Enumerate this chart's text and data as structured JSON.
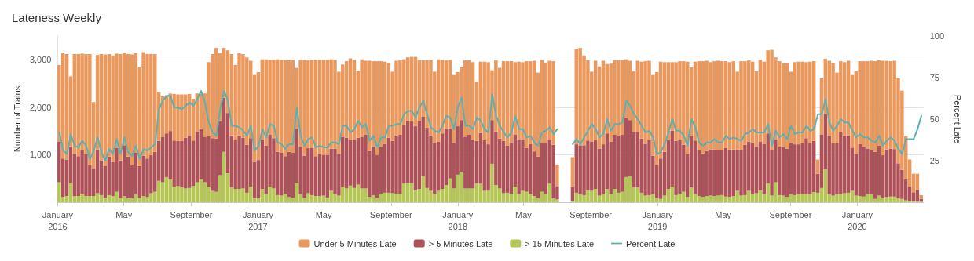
{
  "chart_data": {
    "type": "bar",
    "title": "Lateness Weekly",
    "ylabel": "Number of Trains",
    "y2label": "Percent Late",
    "stacked": true,
    "grid": "y",
    "legend": "bottom",
    "marker": "none",
    "x": [
      "2016-01-04",
      "2016-01-11",
      "2016-01-18",
      "2016-01-25",
      "2016-02-01",
      "2016-02-08",
      "2016-02-15",
      "2016-02-22",
      "2016-02-29",
      "2016-03-07",
      "2016-03-14",
      "2016-03-21",
      "2016-03-28",
      "2016-04-04",
      "2016-04-11",
      "2016-04-18",
      "2016-04-25",
      "2016-05-02",
      "2016-05-09",
      "2016-05-16",
      "2016-05-23",
      "2016-05-30",
      "2016-06-06",
      "2016-06-13",
      "2016-06-20",
      "2016-06-27",
      "2016-07-04",
      "2016-07-11",
      "2016-07-18",
      "2016-07-25",
      "2016-08-01",
      "2016-08-08",
      "2016-08-15",
      "2016-08-22",
      "2016-08-29",
      "2016-09-05",
      "2016-09-12",
      "2016-09-19",
      "2016-09-26",
      "2016-10-03",
      "2016-10-10",
      "2016-10-17",
      "2016-10-24",
      "2016-10-31",
      "2016-11-07",
      "2016-11-14",
      "2016-11-21",
      "2016-11-28",
      "2016-12-05",
      "2016-12-12",
      "2016-12-19",
      "2016-12-26",
      "2017-01-02",
      "2017-01-09",
      "2017-01-16",
      "2017-01-23",
      "2017-01-30",
      "2017-02-06",
      "2017-02-13",
      "2017-02-20",
      "2017-02-27",
      "2017-03-06",
      "2017-03-13",
      "2017-03-20",
      "2017-03-27",
      "2017-04-03",
      "2017-04-10",
      "2017-04-17",
      "2017-04-24",
      "2017-05-01",
      "2017-05-08",
      "2017-05-15",
      "2017-05-22",
      "2017-05-29",
      "2017-06-05",
      "2017-06-12",
      "2017-06-19",
      "2017-06-26",
      "2017-07-03",
      "2017-07-10",
      "2017-07-17",
      "2017-07-24",
      "2017-07-31",
      "2017-08-07",
      "2017-08-14",
      "2017-08-21",
      "2017-08-28",
      "2017-09-04",
      "2017-09-11",
      "2017-09-18",
      "2017-09-25",
      "2017-10-02",
      "2017-10-09",
      "2017-10-16",
      "2017-10-23",
      "2017-10-30",
      "2017-11-06",
      "2017-11-13",
      "2017-11-20",
      "2017-11-27",
      "2017-12-04",
      "2017-12-11",
      "2017-12-18",
      "2017-12-25",
      "2018-01-01",
      "2018-01-08",
      "2018-01-15",
      "2018-01-22",
      "2018-01-29",
      "2018-02-05",
      "2018-02-12",
      "2018-02-19",
      "2018-02-26",
      "2018-03-05",
      "2018-03-12",
      "2018-03-19",
      "2018-03-26",
      "2018-04-02",
      "2018-04-09",
      "2018-04-16",
      "2018-04-23",
      "2018-04-30",
      "2018-05-07",
      "2018-05-14",
      "2018-05-21",
      "2018-05-28",
      "2018-06-04",
      "2018-06-11",
      "2018-06-18",
      "2018-06-25",
      "2018-07-02",
      "2018-07-09",
      "2018-07-16",
      "2018-07-23",
      "2018-07-30",
      "2018-08-06",
      "2018-08-13",
      "2018-08-20",
      "2018-08-27",
      "2018-09-03",
      "2018-09-10",
      "2018-09-17",
      "2018-09-24",
      "2018-10-01",
      "2018-10-08",
      "2018-10-15",
      "2018-10-22",
      "2018-10-29",
      "2018-11-05",
      "2018-11-12",
      "2018-11-19",
      "2018-11-26",
      "2018-12-03",
      "2018-12-10",
      "2018-12-17",
      "2018-12-24",
      "2018-12-31",
      "2019-01-07",
      "2019-01-14",
      "2019-01-21",
      "2019-01-28",
      "2019-02-04",
      "2019-02-11",
      "2019-02-18",
      "2019-02-25",
      "2019-03-04",
      "2019-03-11",
      "2019-03-18",
      "2019-03-25",
      "2019-04-01",
      "2019-04-08",
      "2019-04-15",
      "2019-04-22",
      "2019-04-29",
      "2019-05-06",
      "2019-05-13",
      "2019-05-20",
      "2019-05-27",
      "2019-06-03",
      "2019-06-10",
      "2019-06-17",
      "2019-06-24",
      "2019-07-01",
      "2019-07-08",
      "2019-07-15",
      "2019-07-22",
      "2019-07-29",
      "2019-08-05",
      "2019-08-12",
      "2019-08-19",
      "2019-08-26",
      "2019-09-02",
      "2019-09-09",
      "2019-09-16",
      "2019-09-23",
      "2019-09-30",
      "2019-10-07",
      "2019-10-14",
      "2019-10-21",
      "2019-10-28",
      "2019-11-04",
      "2019-11-11",
      "2019-11-18",
      "2019-11-25",
      "2019-12-02",
      "2019-12-09",
      "2019-12-16",
      "2019-12-23",
      "2019-12-30",
      "2020-01-06",
      "2020-01-13",
      "2020-01-20",
      "2020-01-27",
      "2020-02-03",
      "2020-02-10",
      "2020-02-17",
      "2020-02-24",
      "2020-03-02",
      "2020-03-09",
      "2020-03-16",
      "2020-03-23",
      "2020-03-30",
      "2020-04-06",
      "2020-04-13",
      "2020-04-20",
      "2020-04-27"
    ],
    "series": [
      {
        "name": "> 15 Minutes Late",
        "color": "#b5c656",
        "values": [
          420,
          110,
          130,
          410,
          130,
          130,
          170,
          130,
          130,
          130,
          190,
          150,
          90,
          150,
          130,
          220,
          90,
          130,
          90,
          80,
          170,
          90,
          130,
          110,
          190,
          220,
          450,
          420,
          530,
          480,
          320,
          340,
          310,
          290,
          300,
          340,
          420,
          480,
          420,
          330,
          240,
          220,
          570,
          1060,
          610,
          310,
          280,
          280,
          290,
          200,
          330,
          90,
          80,
          280,
          170,
          330,
          290,
          150,
          140,
          180,
          110,
          90,
          410,
          170,
          90,
          190,
          150,
          130,
          130,
          140,
          100,
          240,
          170,
          140,
          330,
          290,
          350,
          300,
          370,
          290,
          290,
          110,
          150,
          90,
          180,
          200,
          200,
          190,
          180,
          180,
          390,
          400,
          400,
          250,
          280,
          550,
          300,
          240,
          180,
          240,
          280,
          360,
          500,
          290,
          580,
          640,
          290,
          290,
          290,
          400,
          390,
          240,
          240,
          810,
          360,
          290,
          190,
          200,
          180,
          330,
          170,
          240,
          220,
          180,
          130,
          90,
          220,
          170,
          390,
          80,
          60,
          null,
          null,
          null,
          30,
          200,
          170,
          150,
          250,
          240,
          280,
          140,
          170,
          280,
          170,
          280,
          200,
          220,
          530,
          550,
          310,
          310,
          200,
          140,
          150,
          170,
          90,
          70,
          140,
          280,
          330,
          150,
          180,
          220,
          110,
          310,
          170,
          130,
          110,
          130,
          140,
          130,
          140,
          150,
          120,
          110,
          130,
          240,
          140,
          150,
          240,
          170,
          190,
          250,
          170,
          390,
          140,
          420,
          150,
          140,
          110,
          170,
          150,
          170,
          180,
          170,
          160,
          210,
          200,
          300,
          700,
          170,
          140,
          170,
          180,
          190,
          200,
          240,
          140,
          130,
          120,
          170,
          170,
          70,
          140,
          100,
          110,
          120,
          120,
          80,
          70,
          40,
          30,
          20,
          20,
          10
        ]
      },
      {
        "name": "> 5 Minutes Late",
        "color": "#ae525a",
        "values": [
          860,
          810,
          770,
          770,
          890,
          840,
          920,
          890,
          660,
          590,
          920,
          730,
          680,
          810,
          720,
          920,
          790,
          1070,
          870,
          700,
          880,
          670,
          850,
          810,
          800,
          840,
          840,
          950,
          920,
          1020,
          980,
          950,
          980,
          1070,
          1100,
          960,
          1060,
          1060,
          960,
          1060,
          1110,
          1120,
          1140,
          1140,
          1270,
          1100,
          1030,
          1130,
          1070,
          1010,
          1020,
          760,
          810,
          1050,
          1020,
          1090,
          1060,
          910,
          910,
          790,
          950,
          950,
          1140,
          1000,
          890,
          950,
          1000,
          840,
          890,
          860,
          900,
          890,
          960,
          880,
          1050,
          1070,
          970,
          1020,
          990,
          1090,
          1130,
          970,
          1030,
          910,
          1000,
          1030,
          1160,
          1100,
          1230,
          1240,
          1230,
          1320,
          1300,
          1350,
          1430,
          1250,
          1270,
          1170,
          1060,
          1040,
          1170,
          1190,
          1060,
          960,
          1020,
          1090,
          1090,
          1130,
          1030,
          890,
          1070,
          1070,
          980,
          920,
          1130,
          1050,
          1100,
          990,
          1070,
          1100,
          1160,
          1090,
          920,
          1050,
          940,
          870,
          1030,
          1080,
          920,
          1130,
          280,
          null,
          null,
          null,
          290,
          1020,
          1030,
          1050,
          1050,
          1040,
          1030,
          990,
          1050,
          1170,
          1110,
          1140,
          1190,
          1210,
          1240,
          1180,
          1170,
          1170,
          1140,
          1090,
          1160,
          810,
          690,
          850,
          920,
          1030,
          1180,
          1140,
          1130,
          990,
          910,
          1080,
          1130,
          960,
          920,
          950,
          970,
          980,
          950,
          940,
          1030,
          1000,
          980,
          870,
          960,
          1060,
          1040,
          1090,
          990,
          1030,
          1060,
          1060,
          960,
          900,
          1020,
          1020,
          1020,
          1080,
          1070,
          1050,
          1060,
          1180,
          1080,
          1080,
          400,
          1130,
          1160,
          1230,
          1100,
          1070,
          1290,
          1220,
          1210,
          910,
          880,
          1100,
          1050,
          960,
          920,
          990,
          1050,
          890,
          1000,
          1010,
          1000,
          740,
          610,
          440,
          300,
          190,
          240,
          60
        ]
      },
      {
        "name": "Under 5 Minutes Late",
        "color": "#e9985e",
        "values": [
          1610,
          2220,
          2220,
          1470,
          2100,
          2150,
          2040,
          2100,
          2330,
          1390,
          1990,
          2240,
          2340,
          2160,
          2240,
          1990,
          2240,
          1940,
          2160,
          2330,
          2090,
          2080,
          2180,
          2200,
          2130,
          2060,
          1030,
          860,
          800,
          790,
          980,
          980,
          980,
          910,
          880,
          880,
          810,
          750,
          910,
          1560,
          1770,
          1910,
          1430,
          1050,
          1320,
          1710,
          1580,
          1730,
          1760,
          1840,
          1630,
          1830,
          1850,
          1680,
          1820,
          1580,
          1650,
          1950,
          1950,
          2020,
          1940,
          1950,
          1280,
          1830,
          2020,
          1850,
          1850,
          2020,
          1980,
          2000,
          2000,
          1880,
          1870,
          1730,
          1520,
          1610,
          1710,
          1680,
          1410,
          1630,
          1560,
          1900,
          1790,
          1970,
          1790,
          1730,
          1570,
          1460,
          1570,
          1570,
          1390,
          1330,
          1360,
          1460,
          1280,
          1190,
          1420,
          1580,
          1510,
          1730,
          1550,
          1440,
          1440,
          1430,
          1140,
          1110,
          1610,
          1570,
          1630,
          1250,
          1500,
          1650,
          1730,
          1050,
          1500,
          1490,
          1680,
          1780,
          1720,
          1520,
          1630,
          1620,
          1830,
          1740,
          1910,
          1770,
          1750,
          1690,
          1670,
          1760,
          450,
          null,
          null,
          null,
          630,
          2000,
          2050,
          1890,
          1690,
          1470,
          1670,
          1730,
          1760,
          1460,
          1640,
          1570,
          1600,
          1560,
          1240,
          1250,
          1280,
          1500,
          1620,
          1740,
          1670,
          1700,
          1960,
          2040,
          1890,
          1640,
          1440,
          1660,
          1660,
          1760,
          1940,
          1450,
          1660,
          1880,
          1940,
          1900,
          1840,
          1860,
          1890,
          1880,
          1820,
          1840,
          1860,
          1640,
          1870,
          1760,
          1710,
          1700,
          1580,
          1720,
          1730,
          1750,
          2110,
          1730,
          1800,
          1770,
          1800,
          1500,
          1730,
          1740,
          1720,
          1600,
          1720,
          1680,
          300,
          1180,
          1160,
          1580,
          1690,
          1490,
          1500,
          1540,
          1570,
          1530,
          1740,
          1740,
          1800,
          1840,
          1890,
          1910,
          1800,
          1990,
          1870,
          1840,
          1860,
          1790,
          1670,
          910,
          570,
          390,
          340,
          80
        ]
      },
      {
        "name": "Percent Late",
        "type": "line",
        "axis": "y2",
        "color": "#5db0b0",
        "values": [
          42,
          31,
          29,
          41,
          34,
          33,
          37,
          34,
          26,
          31,
          39,
          30,
          25,
          32,
          29,
          38,
          29,
          39,
          30,
          28,
          34,
          26,
          32,
          31,
          33,
          35,
          56,
          61,
          64,
          64,
          57,
          57,
          56,
          58,
          60,
          58,
          62,
          67,
          60,
          48,
          42,
          40,
          56,
          67,
          61,
          46,
          46,
          45,
          43,
          40,
          46,
          31,
          34,
          44,
          39,
          47,
          46,
          36,
          35,
          32,
          35,
          35,
          57,
          40,
          34,
          38,
          39,
          33,
          34,
          33,
          33,
          36,
          36,
          35,
          46,
          46,
          42,
          44,
          49,
          45,
          47,
          37,
          40,
          33,
          39,
          39,
          46,
          46,
          47,
          47,
          53,
          55,
          55,
          51,
          57,
          61,
          53,
          45,
          43,
          42,
          46,
          52,
          51,
          44,
          57,
          63,
          46,
          46,
          44,
          51,
          49,
          44,
          42,
          65,
          52,
          46,
          42,
          39,
          42,
          52,
          44,
          44,
          39,
          40,
          36,
          34,
          42,
          43,
          45,
          41,
          44,
          null,
          null,
          null,
          35,
          38,
          35,
          39,
          43,
          47,
          44,
          39,
          41,
          50,
          43,
          47,
          47,
          48,
          61,
          58,
          53,
          50,
          46,
          42,
          43,
          39,
          29,
          30,
          35,
          42,
          50,
          43,
          43,
          40,
          34,
          50,
          45,
          36,
          34,
          36,
          36,
          38,
          36,
          36,
          40,
          38,
          39,
          38,
          37,
          41,
          42,
          44,
          42,
          42,
          42,
          47,
          34,
          43,
          39,
          41,
          38,
          46,
          41,
          42,
          42,
          46,
          43,
          44,
          53,
          53,
          62,
          48,
          43,
          46,
          50,
          48,
          48,
          43,
          39,
          41,
          39,
          39,
          37,
          36,
          40,
          34,
          37,
          39,
          37,
          32,
          29,
          38,
          38,
          38,
          44,
          52
        ]
      }
    ],
    "xlim": [
      "2016-01-01",
      "2020-05-01"
    ],
    "xticks": [
      {
        "value": "2016-01-01",
        "label": "January\n2016"
      },
      {
        "value": "2016-05-01",
        "label": "May"
      },
      {
        "value": "2016-09-01",
        "label": "September"
      },
      {
        "value": "2017-01-01",
        "label": "January\n2017"
      },
      {
        "value": "2017-05-01",
        "label": "May"
      },
      {
        "value": "2017-09-01",
        "label": "September"
      },
      {
        "value": "2018-01-01",
        "label": "January\n2018"
      },
      {
        "value": "2018-05-01",
        "label": "May"
      },
      {
        "value": "2018-09-01",
        "label": "September"
      },
      {
        "value": "2019-01-01",
        "label": "January\n2019"
      },
      {
        "value": "2019-05-01",
        "label": "May"
      },
      {
        "value": "2019-09-01",
        "label": "September"
      },
      {
        "value": "2020-01-01",
        "label": "January\n2020"
      }
    ],
    "ylim": [
      0,
      3500
    ],
    "yticks": [
      {
        "value": 1000,
        "label": "1,000"
      },
      {
        "value": 2000,
        "label": "2,000"
      },
      {
        "value": 3000,
        "label": "3,000"
      }
    ],
    "y2lim": [
      0,
      100
    ],
    "y2ticks": [
      25,
      50,
      75,
      100
    ]
  }
}
